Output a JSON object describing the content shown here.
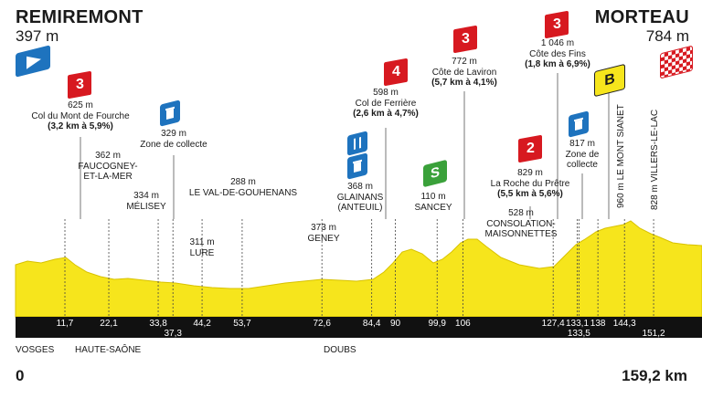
{
  "start": {
    "name": "REMIREMONT",
    "altitude": "397 m",
    "km": "0"
  },
  "finish": {
    "name": "MORTEAU",
    "altitude": "784 m",
    "km": "159,2 km"
  },
  "regions": [
    "VOSGES",
    "HAUTE-SAÔNE",
    "DOUBS"
  ],
  "km_marks": [
    {
      "km": 11.7,
      "label": "11,7"
    },
    {
      "km": 22.1,
      "label": "22,1"
    },
    {
      "km": 33.8,
      "label": "33,8"
    },
    {
      "km": 37.3,
      "label": "37,3"
    },
    {
      "km": 44.2,
      "label": "44,2"
    },
    {
      "km": 53.7,
      "label": "53,7"
    },
    {
      "km": 72.6,
      "label": "72,6"
    },
    {
      "km": 84.4,
      "label": "84,4"
    },
    {
      "km": 90,
      "label": "90"
    },
    {
      "km": 99.9,
      "label": "99,9"
    },
    {
      "km": 106,
      "label": "106"
    },
    {
      "km": 127.4,
      "label": "127,4"
    },
    {
      "km": 133.1,
      "label": "133,1"
    },
    {
      "km": 133.5,
      "label": "133,5"
    },
    {
      "km": 138,
      "label": "138"
    },
    {
      "km": 144.3,
      "label": "144,3"
    },
    {
      "km": 151.2,
      "label": "151,2"
    }
  ],
  "points": {
    "fourche": {
      "alt": "625 m",
      "name": "Col du Mont de Fourche",
      "detail": "(3,2 km à 5,9%)",
      "cat": "3"
    },
    "faucogney": {
      "alt": "362 m",
      "name1": "FAUCOGNEY-",
      "name2": "ET-LA-MER"
    },
    "melisey": {
      "alt": "334 m",
      "name": "MÉLISEY"
    },
    "collecte1": {
      "alt": "329 m",
      "name": "Zone de collecte"
    },
    "lure": {
      "alt": "311 m",
      "name": "LURE"
    },
    "gouhenans": {
      "alt": "288 m",
      "name": "LE VAL-DE-GOUHENANS"
    },
    "geney": {
      "alt": "373 m",
      "name": "GENEY"
    },
    "glainans": {
      "alt": "368 m",
      "name1": "GLAINANS",
      "name2": "(ANTEUIL)"
    },
    "ferriere": {
      "alt": "598 m",
      "name": "Col de Ferrière",
      "detail": "(2,6 km à 4,7%)",
      "cat": "4"
    },
    "sancey": {
      "alt": "110 m",
      "name": "SANCEY",
      "sprint": "S"
    },
    "laviron": {
      "alt": "772 m",
      "name": "Côte de Laviron",
      "detail": "(5,7 km à 4,1%)",
      "cat": "3"
    },
    "consolation": {
      "alt": "528 m",
      "name1": "CONSOLATION-",
      "name2": "MAISONNETTES"
    },
    "pretre": {
      "alt": "829 m",
      "name": "La Roche du Prêtre",
      "detail": "(5,5 km à 5,6%)",
      "cat": "2"
    },
    "collecte2": {
      "alt": "817 m",
      "name1": "Zone de",
      "name2": "collecte"
    },
    "sianet": {
      "text": "960 m LE MONT SIANET",
      "bonus": "B"
    },
    "fins": {
      "alt": "1 046 m",
      "name": "Côte des Fins",
      "detail": "(1,8 km à 6,9%)",
      "cat": "3"
    },
    "villers": {
      "text": "828 m VILLERS-LE-LAC"
    }
  },
  "colors": {
    "profile": "#f6e51c",
    "base_band": "#111111",
    "climb": "#d71920",
    "sprint": "#3aa13a",
    "feed": "#1e73be",
    "bonus": "#f6e51c"
  }
}
